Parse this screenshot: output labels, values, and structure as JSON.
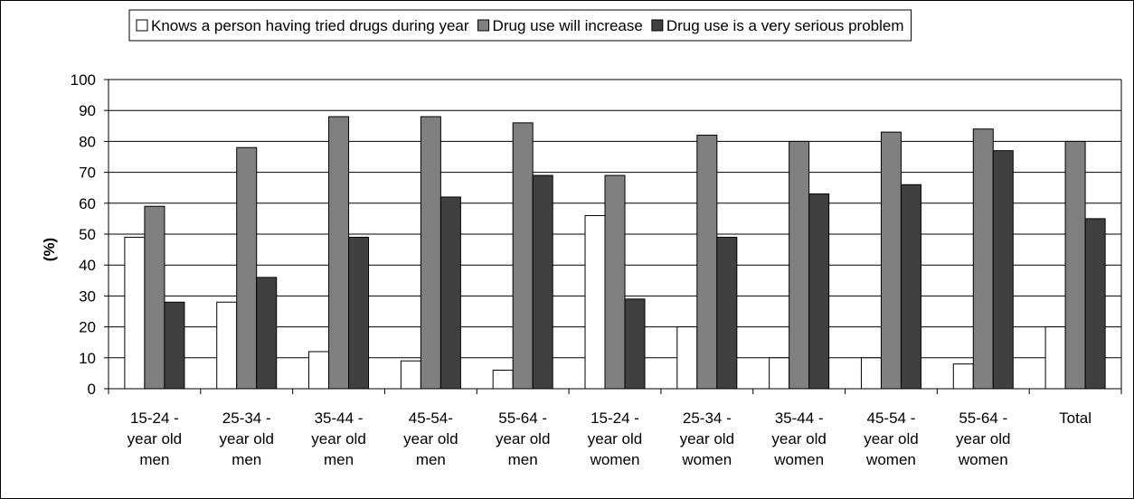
{
  "chart_data": {
    "type": "bar",
    "title": "",
    "xlabel": "",
    "ylabel": "(%)",
    "ylim": [
      0,
      100
    ],
    "yticks": [
      0,
      10,
      20,
      30,
      40,
      50,
      60,
      70,
      80,
      90,
      100
    ],
    "grid": true,
    "legend_position": "top",
    "categories": [
      [
        "15-24 -",
        "year old",
        "men"
      ],
      [
        "25-34 -",
        "year old",
        "men"
      ],
      [
        "35-44 -",
        "year old",
        "men"
      ],
      [
        "45-54-",
        "year old",
        "men"
      ],
      [
        "55-64 -",
        "year old",
        "men"
      ],
      [
        "15-24 -",
        "year old",
        "women"
      ],
      [
        "25-34 -",
        "year old",
        "women"
      ],
      [
        "35-44 -",
        "year old",
        "women"
      ],
      [
        "45-54 -",
        "year old",
        "women"
      ],
      [
        "55-64 -",
        "year old",
        "women"
      ],
      [
        "Total"
      ]
    ],
    "series": [
      {
        "name": "Knows a person having tried drugs during year",
        "color": "#ffffff",
        "values": [
          49,
          28,
          12,
          9,
          6,
          56,
          20,
          10,
          10,
          8,
          20
        ]
      },
      {
        "name": "Drug use will increase",
        "color": "#808080",
        "values": [
          59,
          78,
          88,
          88,
          86,
          69,
          82,
          80,
          83,
          84,
          80
        ]
      },
      {
        "name": "Drug use is a very serious problem",
        "color": "#404040",
        "values": [
          28,
          36,
          49,
          62,
          69,
          29,
          49,
          63,
          66,
          77,
          55
        ]
      }
    ]
  }
}
